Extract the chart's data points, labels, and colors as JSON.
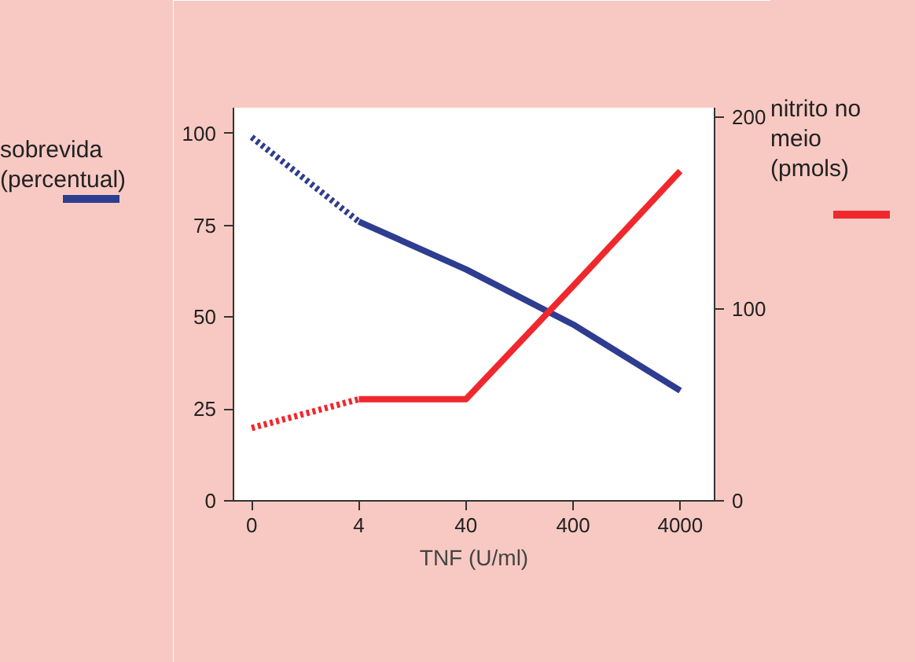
{
  "chart_data": {
    "type": "line",
    "xlabel": "TNF (U/ml)",
    "ylabel": "sobrevida\n(percentual)",
    "y2label": "nitrito no\nmeio\n(pmols)",
    "categories": [
      "0",
      "4",
      "40",
      "400",
      "4000"
    ],
    "ylim": [
      0,
      107
    ],
    "yticks": [
      0,
      25,
      50,
      75,
      100
    ],
    "y2lim": [
      0,
      205
    ],
    "y2ticks": [
      0,
      100,
      200
    ],
    "series": [
      {
        "color": "#2e3d8f",
        "values": [
          99,
          76,
          null,
          null,
          null
        ],
        "line_style": "dotted"
      },
      {
        "color": "#2e3d8f",
        "values": [
          null,
          76,
          63,
          48,
          30
        ],
        "line_style": "solid"
      },
      {
        "color": "#f0282d",
        "values": [
          38,
          53,
          null,
          null,
          null
        ],
        "line_style": "dotted",
        "axis": "y2"
      },
      {
        "color": "#f0282d",
        "values": [
          null,
          53,
          53,
          112,
          172
        ],
        "line_style": "solid",
        "axis": "y2"
      }
    ]
  }
}
